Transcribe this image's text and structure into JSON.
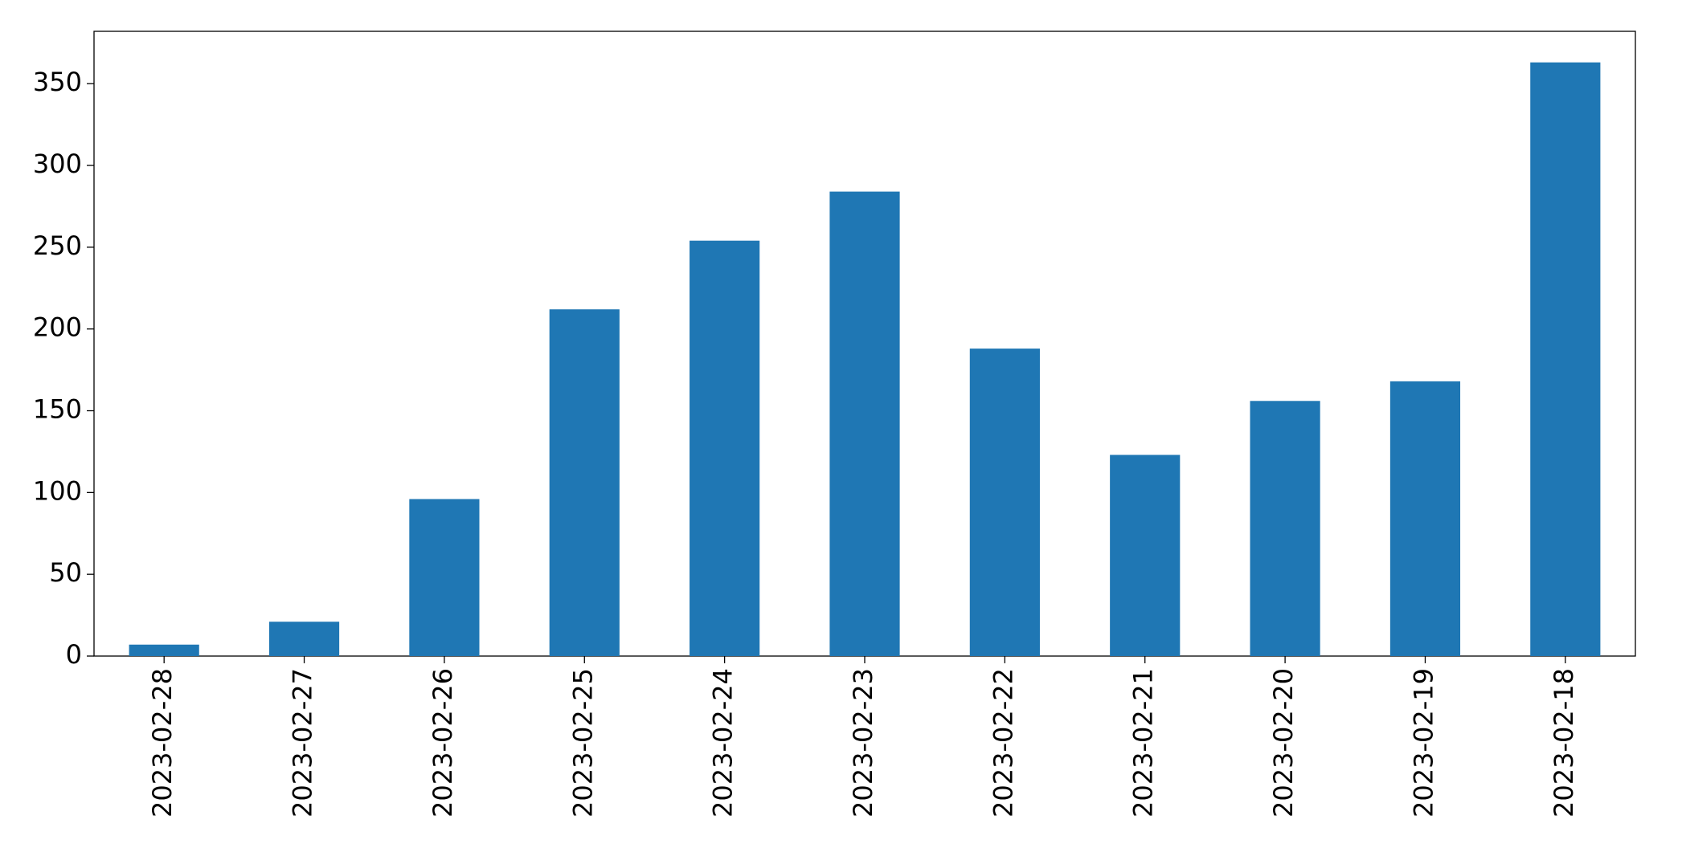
{
  "chart_data": {
    "type": "bar",
    "categories": [
      "2023-02-28",
      "2023-02-27",
      "2023-02-26",
      "2023-02-25",
      "2023-02-24",
      "2023-02-23",
      "2023-02-22",
      "2023-02-21",
      "2023-02-20",
      "2023-02-19",
      "2023-02-18"
    ],
    "values": [
      7,
      21,
      96,
      212,
      254,
      284,
      188,
      123,
      156,
      168,
      363
    ],
    "color": "#1f77b4",
    "ylim": [
      0,
      382
    ],
    "yticks": [
      0,
      50,
      100,
      150,
      200,
      250,
      300,
      350
    ],
    "grid": false
  }
}
